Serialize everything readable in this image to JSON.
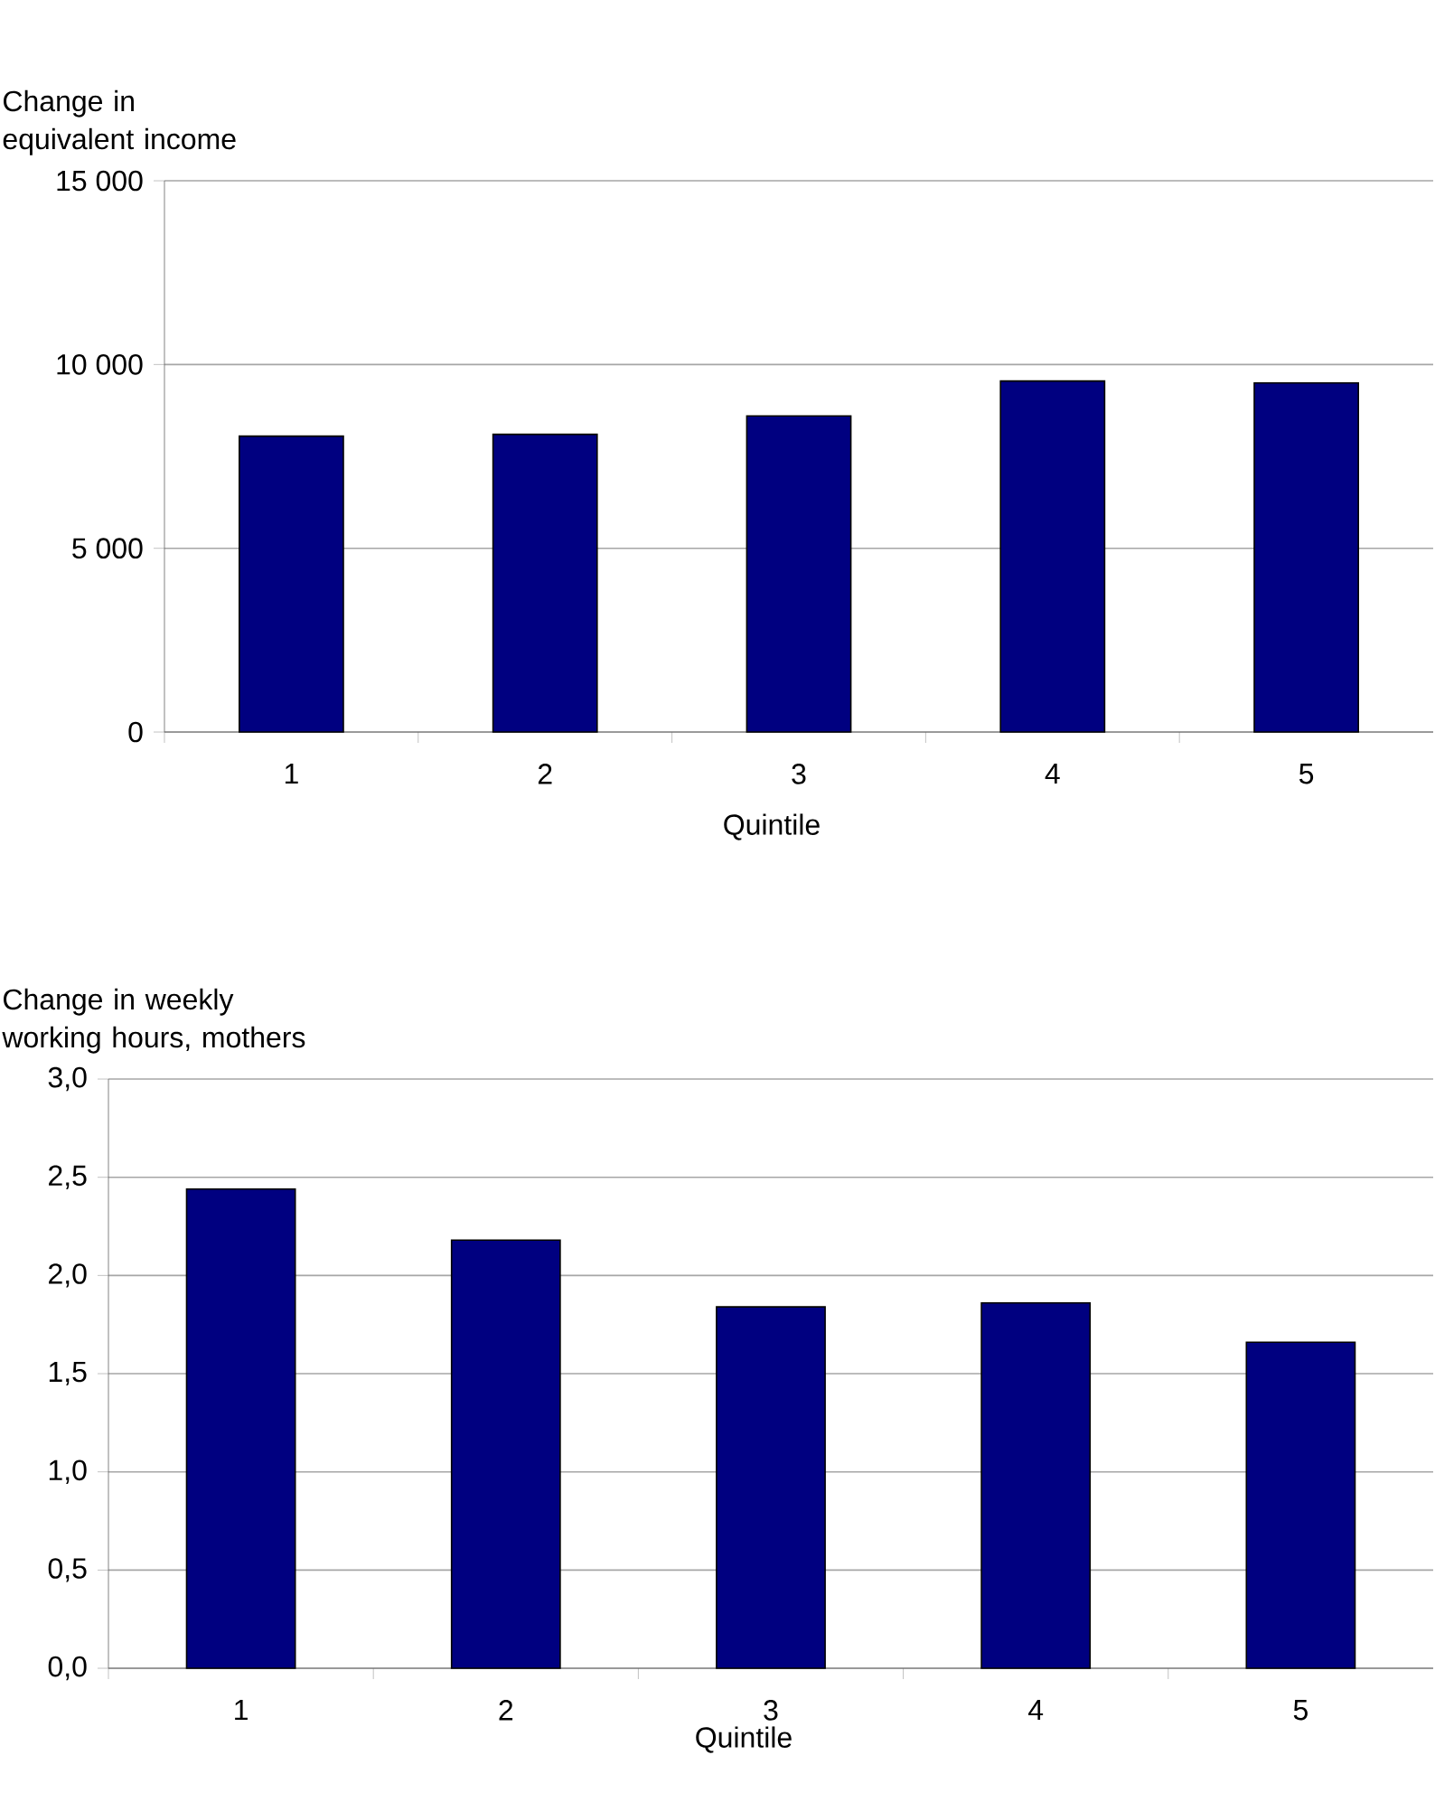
{
  "chart_data": [
    {
      "type": "bar",
      "ylabel": "Change in equivalent income",
      "xlabel": "Quintile",
      "categories": [
        "1",
        "2",
        "3",
        "4",
        "5"
      ],
      "values": [
        8050,
        8100,
        8600,
        9550,
        9500
      ],
      "color": "#000080",
      "ylim": [
        0,
        15000
      ],
      "yticks": [
        0,
        {
          "value": 5000,
          "label": "5 000"
        },
        {
          "value": 10000,
          "label": "10 000"
        },
        {
          "value": 15000,
          "label": "15 000"
        }
      ],
      "grid": "y"
    },
    {
      "type": "bar",
      "ylabel": "Change in weekly working hours, mothers",
      "xlabel": "Quintile",
      "categories": [
        "1",
        "2",
        "3",
        "4",
        "5"
      ],
      "values": [
        2.44,
        2.18,
        1.84,
        1.86,
        1.66
      ],
      "color": "#000080",
      "ylim": [
        0,
        3
      ],
      "yticks": [
        {
          "value": 0,
          "label": "0,0"
        },
        {
          "value": 0.5,
          "label": "0,5"
        },
        {
          "value": 1,
          "label": "1,0"
        },
        {
          "value": 1.5,
          "label": "1,5"
        },
        {
          "value": 2,
          "label": "2,0"
        },
        {
          "value": 2.5,
          "label": "2,5"
        },
        {
          "value": 3,
          "label": "3,0"
        }
      ],
      "grid": "y"
    }
  ]
}
